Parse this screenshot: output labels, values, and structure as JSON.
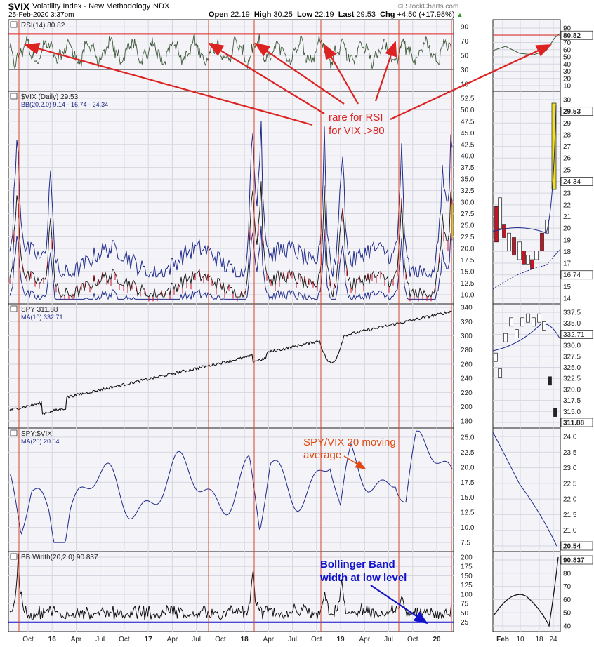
{
  "header": {
    "symbol": "$VIX",
    "name": "Volatility Index - New Methodology",
    "exchange": "INDX",
    "datetime": "25-Feb-2020 3:37pm",
    "credit": "© StockCharts.com",
    "quote": {
      "open_label": "Open",
      "open": "22.19",
      "high_label": "High",
      "high": "30.25",
      "low_label": "Low",
      "low": "22.19",
      "last_label": "Last",
      "last": "29.53",
      "chg_label": "Chg",
      "chg": "+4.50 (+17.98%)"
    }
  },
  "x_ticks": [
    "Oct",
    "16",
    "Apr",
    "Jul",
    "Oct",
    "17",
    "Apr",
    "Jul",
    "Oct",
    "18",
    "Apr",
    "Jul",
    "Oct",
    "19",
    "Apr",
    "Jul",
    "Oct",
    "20"
  ],
  "zoom_x_ticks": [
    "Feb",
    "10",
    "18",
    "24"
  ],
  "colors": {
    "up": "#1f2a8a",
    "down": "#cc1122",
    "vline": "#d2452b",
    "annot": "#dd2222",
    "annot2": "#e04a10",
    "annot3": "#1111cc"
  },
  "chart_data": [
    {
      "type": "line",
      "panel": "rsi",
      "title": "RSI(14) 80.82",
      "y_ticks": [
        90,
        70,
        50,
        30,
        10
      ],
      "ylim": [
        0,
        100
      ],
      "zoom_labels": [
        "90",
        "80.82",
        "70",
        "60",
        "50",
        "40",
        "30",
        "20",
        "10"
      ],
      "last": 80.82,
      "reference_lines": [
        80
      ]
    },
    {
      "type": "line",
      "panel": "vix",
      "title": "$VIX (Daily) 29.53",
      "legend": [
        "BB(20,2.0) 9.14 - 16.74 - 24.34"
      ],
      "y_ticks": [
        52.5,
        50.0,
        47.5,
        45.0,
        42.5,
        40.0,
        37.5,
        35.0,
        32.5,
        30.0,
        27.5,
        25.0,
        22.5,
        20.0,
        17.5,
        15.0,
        12.5,
        10.0
      ],
      "ylim": [
        8,
        54
      ],
      "zoom_labels": [
        "30",
        "29.53",
        "29",
        "28",
        "27",
        "26",
        "25",
        "24.34",
        "23",
        "22",
        "21",
        "20",
        "19",
        "18",
        "17",
        "16.74",
        "15",
        "14"
      ],
      "last": 29.53,
      "bb": {
        "lower": 9.14,
        "mid": 16.74,
        "upper": 24.34
      }
    },
    {
      "type": "line",
      "panel": "spy",
      "title": "SPY 311.88",
      "legend": [
        "MA(10) 332.71"
      ],
      "y_ticks": [
        340,
        320,
        300,
        280,
        260,
        240,
        220,
        200,
        180
      ],
      "ylim": [
        170,
        345
      ],
      "zoom_labels": [
        "337.5",
        "335.0",
        "332.71",
        "330.0",
        "327.5",
        "325.0",
        "322.5",
        "320.0",
        "317.5",
        "315.0",
        "311.88"
      ],
      "last": 311.88,
      "ma10": 332.71
    },
    {
      "type": "line",
      "panel": "ratio",
      "title": "SPY:$VIX",
      "legend": [
        "MA(20) 20.54"
      ],
      "y_ticks": [
        25.0,
        22.5,
        20.0,
        17.5,
        15.0,
        12.5,
        10.0,
        7.5
      ],
      "ylim": [
        6,
        26.5
      ],
      "zoom_labels": [
        "24.0",
        "23.5",
        "23.0",
        "22.5",
        "22.0",
        "21.5",
        "21.0",
        "20.54"
      ],
      "last": 20.54
    },
    {
      "type": "line",
      "panel": "bbw",
      "title": "BB Width(20,2.0) 90.837",
      "y_ticks": [
        200,
        175,
        150,
        125,
        100,
        75,
        50,
        25
      ],
      "ylim": [
        0,
        215
      ],
      "zoom_labels": [
        "90.837",
        "80",
        "70",
        "60",
        "50",
        "40"
      ],
      "last": 90.837,
      "reference_lines": [
        25
      ]
    }
  ],
  "annotations": {
    "rsi_note": "rare for RSI\nfor VIX .>80",
    "ratio_note": "SPY/VIX 20 moving\naverage",
    "bbw_note": "Bollinger Band\nwidth at low level"
  }
}
